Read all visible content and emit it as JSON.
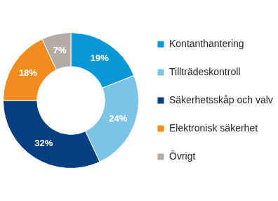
{
  "chart_data": {
    "type": "doughnut",
    "categories": [
      "Kontanthantering",
      "Tillträdeskontroll",
      "Säkerhetsskåp och valv",
      "Elektronisk säkerhet",
      "Övrigt"
    ],
    "values": [
      19,
      24,
      32,
      18,
      7
    ],
    "value_labels": [
      "19%",
      "24%",
      "32%",
      "18%",
      "7%"
    ],
    "colors": [
      "#0796d6",
      "#7cc3e8",
      "#053f7f",
      "#f28c1f",
      "#b3aca6"
    ],
    "legend": "right",
    "data_labels": true
  }
}
